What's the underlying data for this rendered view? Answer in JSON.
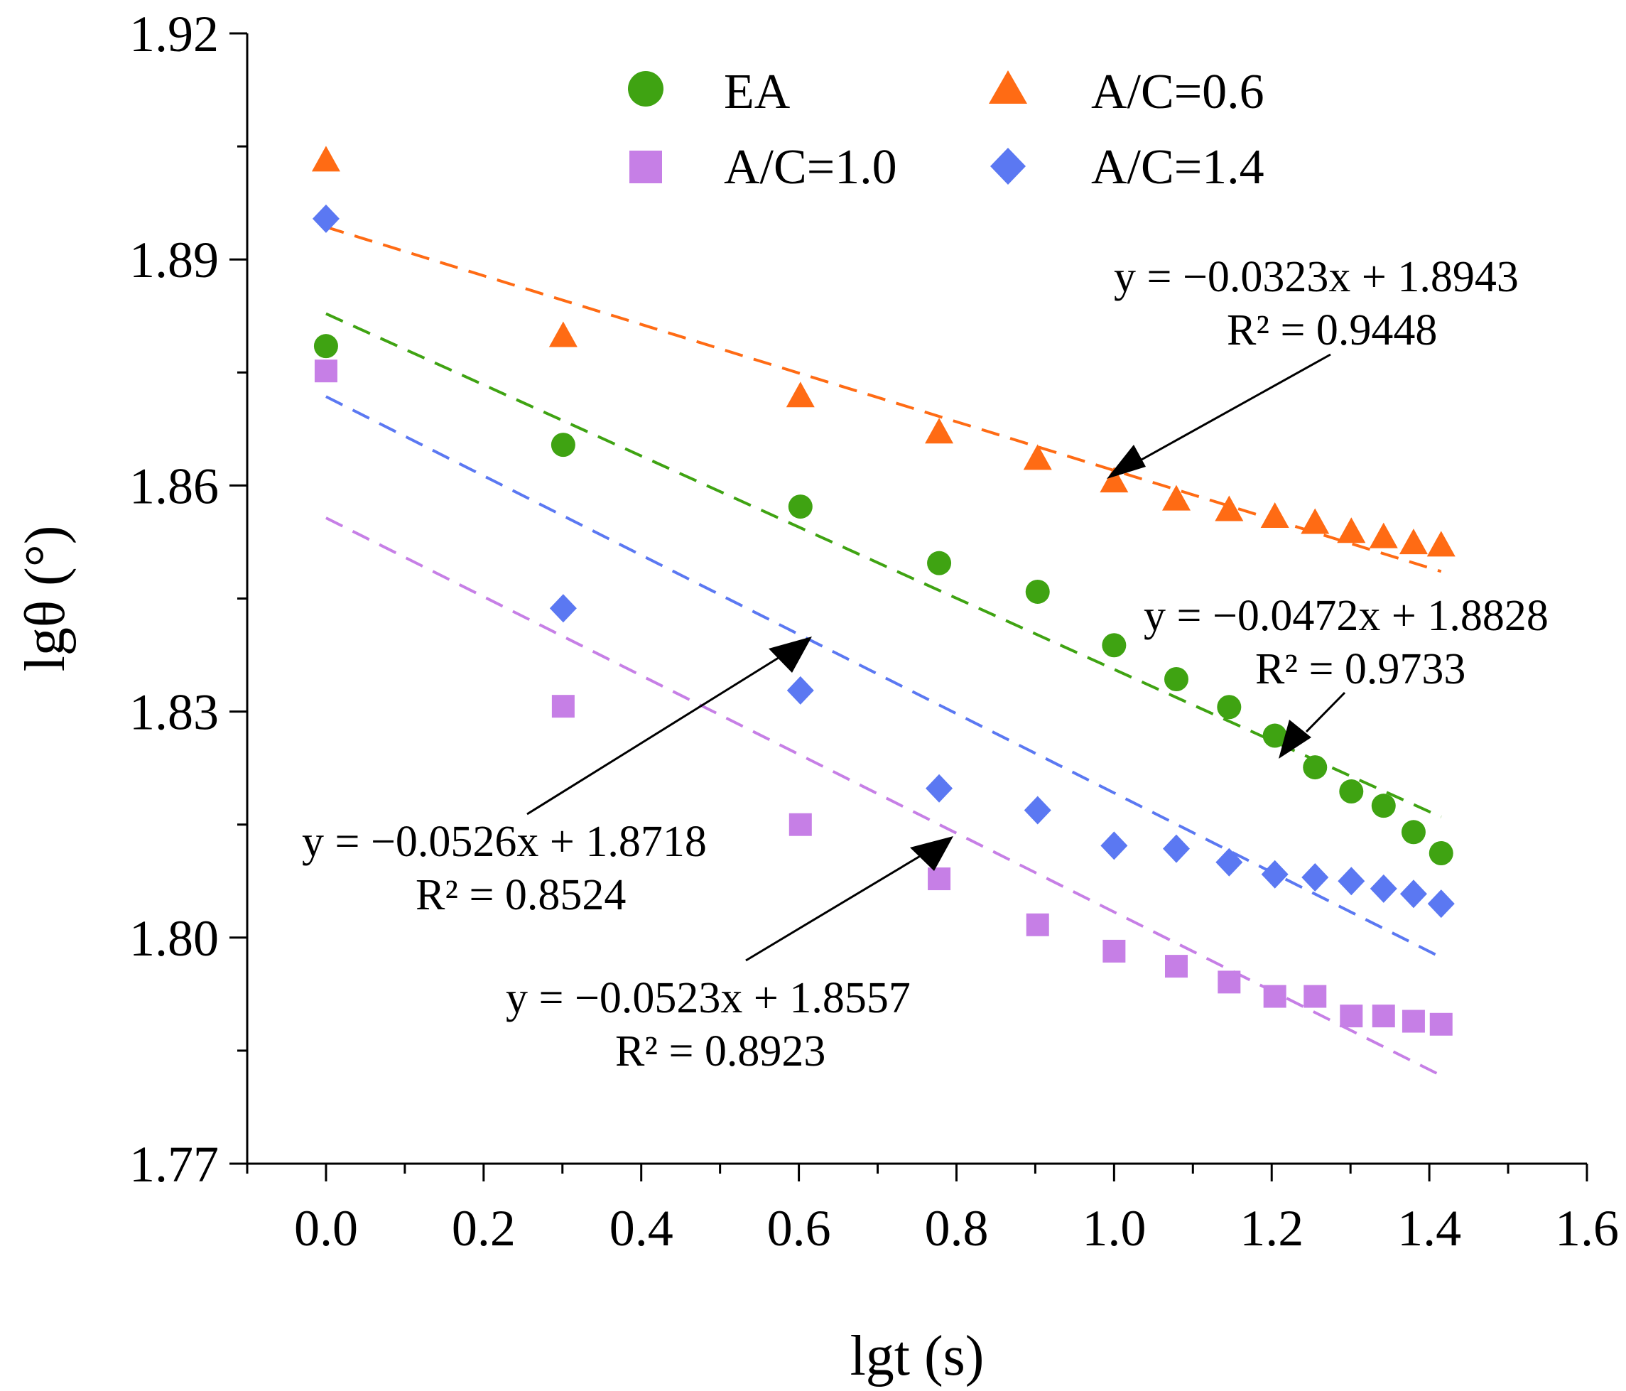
{
  "chart_data": {
    "type": "scatter",
    "xlabel": "lgt (s)",
    "ylabel": "lgθ (°)",
    "xlim": [
      -0.1,
      1.6
    ],
    "ylim": [
      1.77,
      1.92
    ],
    "x_ticks": [
      "0.0",
      "0.2",
      "0.4",
      "0.6",
      "0.8",
      "1.0",
      "1.2",
      "1.4",
      "1.6"
    ],
    "y_ticks": [
      "1.77",
      "1.80",
      "1.83",
      "1.86",
      "1.89",
      "1.92"
    ],
    "legend_position": "top",
    "x": [
      0.0,
      0.301,
      0.602,
      0.778,
      0.903,
      1.0,
      1.079,
      1.146,
      1.204,
      1.255,
      1.301,
      1.342,
      1.38,
      1.415
    ],
    "series": [
      {
        "name": "EA",
        "marker": "circle",
        "color": "#3fa312",
        "values": [
          1.8785,
          1.8654,
          1.8572,
          1.8497,
          1.8459,
          1.8388,
          1.8343,
          1.8306,
          1.8268,
          1.8226,
          1.8194,
          1.8175,
          1.814,
          1.8112
        ],
        "fit": {
          "slope": -0.0472,
          "intercept": 1.8828,
          "equation": "y = −0.0472x + 1.8828",
          "r2": "R² = 0.9733"
        }
      },
      {
        "name": "A/C=0.6",
        "marker": "triangle",
        "color": "#ff6b14",
        "values": [
          1.903,
          1.8797,
          1.8717,
          1.8669,
          1.8634,
          1.8604,
          1.858,
          1.8566,
          1.8557,
          1.8549,
          1.8537,
          1.853,
          1.8522,
          1.8519
        ],
        "fit": {
          "slope": -0.0323,
          "intercept": 1.8943,
          "equation": "y = −0.0323x + 1.8943",
          "r2": "R² = 0.9448"
        }
      },
      {
        "name": "A/C=1.0",
        "marker": "square",
        "color": "#c67fe6",
        "values": [
          1.8752,
          1.8307,
          1.815,
          1.8078,
          1.8017,
          1.7982,
          1.7962,
          1.7941,
          1.7922,
          1.7922,
          1.7896,
          1.7896,
          1.7889,
          1.7885
        ],
        "fit": {
          "slope": -0.0523,
          "intercept": 1.8557,
          "equation": "y = −0.0523x + 1.8557",
          "r2": "R² = 0.8923"
        }
      },
      {
        "name": "A/C=1.4",
        "marker": "diamond",
        "color": "#5b78f2",
        "values": [
          1.8954,
          1.8437,
          1.8328,
          1.8198,
          1.8169,
          1.8122,
          1.8118,
          1.81,
          1.8084,
          1.808,
          1.8075,
          1.8065,
          1.8058,
          1.8045
        ],
        "fit": {
          "slope": -0.0526,
          "intercept": 1.8718,
          "equation": "y = −0.0526x + 1.8718",
          "r2": "R² = 0.8524"
        }
      }
    ],
    "fit_x_range": [
      0.0,
      1.415
    ]
  }
}
